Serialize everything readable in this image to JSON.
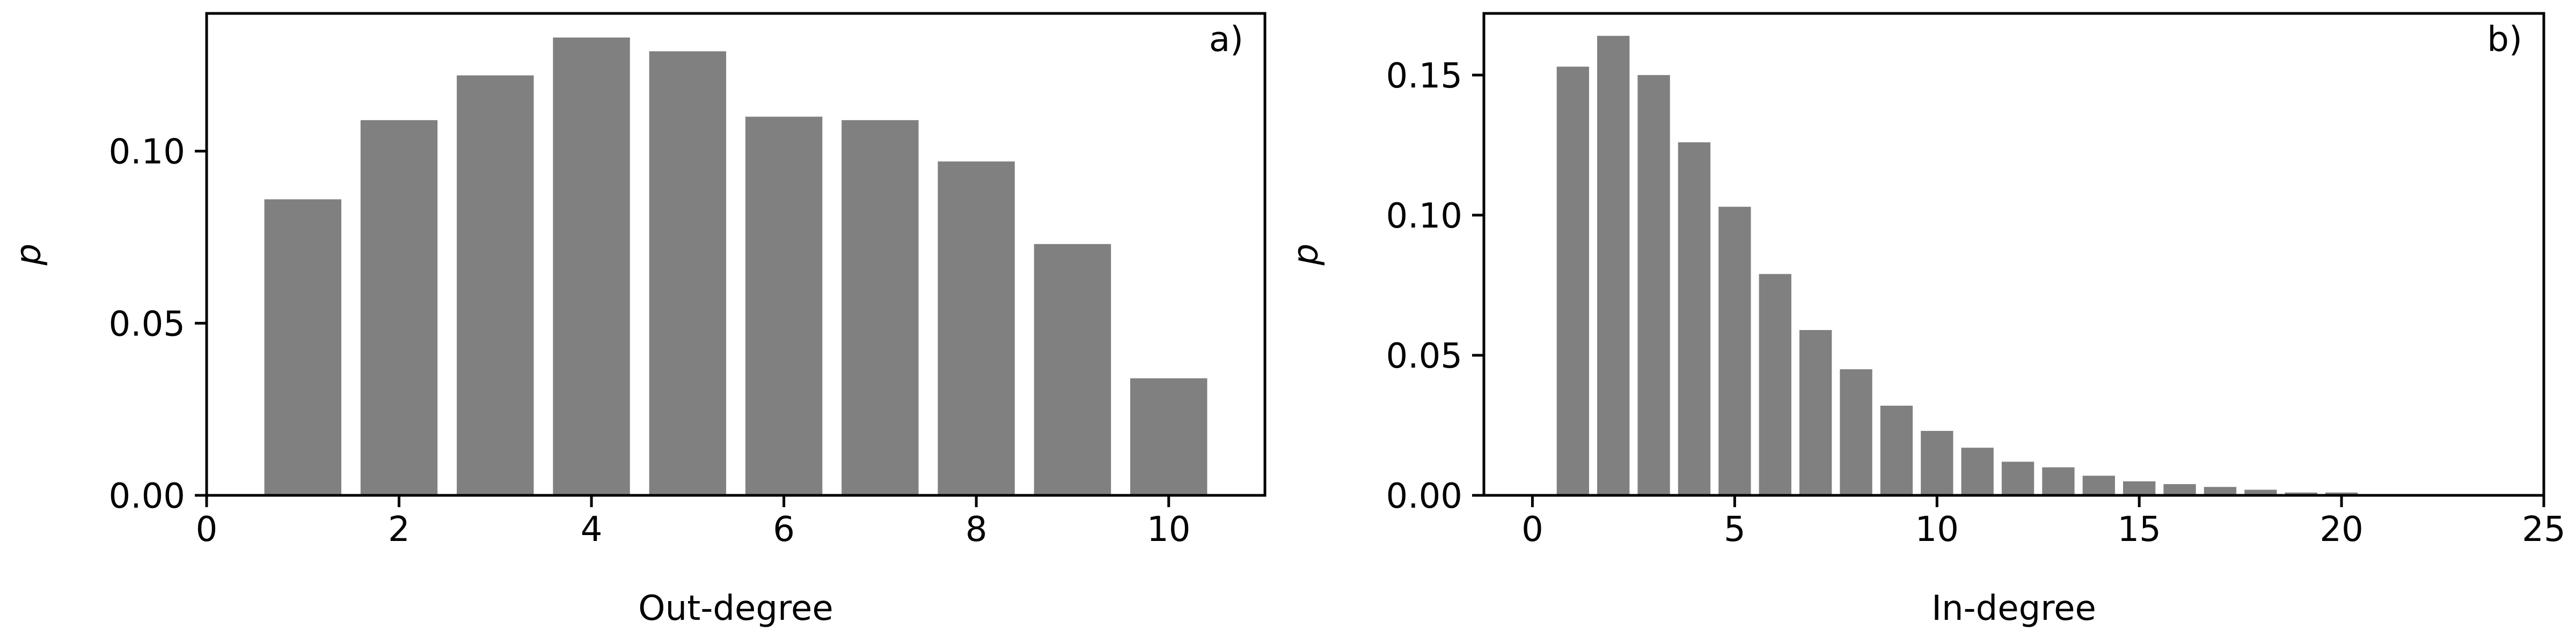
{
  "figure": {
    "bar_color": "#808080",
    "axis_color": "#000000",
    "background": "#ffffff"
  },
  "chart_data": [
    {
      "type": "bar",
      "panel_label": "a)",
      "xlabel": "Out-degree",
      "ylabel": "p",
      "xlim": [
        0,
        11
      ],
      "ylim": [
        0,
        0.14
      ],
      "xticks": [
        0,
        2,
        4,
        6,
        8,
        10
      ],
      "xtick_labels": [
        "0",
        "2",
        "4",
        "6",
        "8",
        "10"
      ],
      "yticks": [
        0,
        0.05,
        0.1
      ],
      "ytick_labels": [
        "0.00",
        "0.05",
        "0.10"
      ],
      "grid": false,
      "bar_width": 0.8,
      "categories": [
        1,
        2,
        3,
        4,
        5,
        6,
        7,
        8,
        9,
        10
      ],
      "values": [
        0.086,
        0.109,
        0.122,
        0.133,
        0.129,
        0.11,
        0.109,
        0.097,
        0.073,
        0.034
      ]
    },
    {
      "type": "bar",
      "panel_label": "b)",
      "xlabel": "In-degree",
      "ylabel": "p",
      "xlim": [
        -1.2,
        25
      ],
      "ylim": [
        0,
        0.172
      ],
      "xticks": [
        0,
        5,
        10,
        15,
        20,
        25
      ],
      "xtick_labels": [
        "0",
        "5",
        "10",
        "15",
        "20",
        "25"
      ],
      "yticks": [
        0,
        0.05,
        0.1,
        0.15
      ],
      "ytick_labels": [
        "0.00",
        "0.05",
        "0.10",
        "0.15"
      ],
      "grid": false,
      "bar_width": 0.8,
      "categories": [
        1,
        2,
        3,
        4,
        5,
        6,
        7,
        8,
        9,
        10,
        11,
        12,
        13,
        14,
        15,
        16,
        17,
        18,
        19,
        20
      ],
      "values": [
        0.153,
        0.164,
        0.15,
        0.126,
        0.103,
        0.079,
        0.059,
        0.045,
        0.032,
        0.023,
        0.017,
        0.012,
        0.01,
        0.007,
        0.005,
        0.004,
        0.003,
        0.002,
        0.001,
        0.001
      ]
    }
  ]
}
